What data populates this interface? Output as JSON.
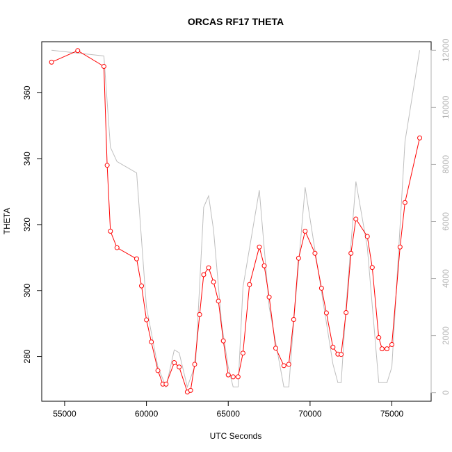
{
  "chart_data": {
    "type": "line",
    "title": "ORCAS RF17 THETA",
    "xlabel": "UTC Seconds",
    "ylabel": "THETA",
    "xlim": [
      53600,
      77400
    ],
    "ylim": [
      266.4,
      375.5
    ],
    "y2lim": [
      -300,
      12300
    ],
    "x_ticks": [
      55000,
      60000,
      65000,
      70000,
      75000
    ],
    "y_ticks": [
      280,
      300,
      320,
      340,
      360
    ],
    "y2_ticks": [
      0,
      2000,
      4000,
      6000,
      8000,
      10000,
      12000
    ],
    "grid": false,
    "series": [
      {
        "axis": "left",
        "color": "#ff0000",
        "marker": "open-circle",
        "x": [
          54200,
          55800,
          57400,
          57600,
          57800,
          58200,
          59400,
          59700,
          60000,
          60300,
          60700,
          61000,
          61200,
          61700,
          62000,
          62500,
          62700,
          62950,
          63250,
          63500,
          63800,
          64100,
          64400,
          64700,
          65000,
          65300,
          65600,
          65900,
          66300,
          66900,
          67200,
          67500,
          67900,
          68400,
          68700,
          69000,
          69300,
          69700,
          70300,
          70700,
          71000,
          71400,
          71700,
          71900,
          72200,
          72500,
          72800,
          73500,
          73800,
          74200,
          74400,
          74700,
          75000,
          75500,
          75800,
          76700
        ],
        "y": [
          369.3,
          372.8,
          368.0,
          338.0,
          318.0,
          313.0,
          309.6,
          301.4,
          291.1,
          284.4,
          275.7,
          271.6,
          271.6,
          278.1,
          276.8,
          269.2,
          269.7,
          277.6,
          292.7,
          304.8,
          306.9,
          302.6,
          296.8,
          284.7,
          274.4,
          273.8,
          273.8,
          281.0,
          301.8,
          313.2,
          307.5,
          298.0,
          282.5,
          277.2,
          277.6,
          291.2,
          309.8,
          318.0,
          311.3,
          300.7,
          293.2,
          282.8,
          280.7,
          280.6,
          293.3,
          311.3,
          321.7,
          316.4,
          307.0,
          285.7,
          282.3,
          282.3,
          283.6,
          313.2,
          326.7,
          346.3
        ]
      },
      {
        "axis": "right",
        "color": "#bebebe",
        "marker": "none",
        "x": [
          54200,
          55800,
          57400,
          57800,
          58200,
          59400,
          60000,
          60700,
          61200,
          61700,
          62000,
          62500,
          63000,
          63500,
          63800,
          64100,
          64600,
          65000,
          65300,
          65600,
          65900,
          66900,
          67500,
          68400,
          68700,
          69000,
          69700,
          70300,
          71400,
          71700,
          71900,
          72200,
          72800,
          73500,
          74200,
          74400,
          74700,
          75000,
          75800,
          76700
        ],
        "y": [
          12000,
          11900,
          11800,
          8600,
          8100,
          7700,
          3000,
          900,
          200,
          1500,
          1400,
          200,
          1000,
          6500,
          6900,
          5700,
          2400,
          900,
          200,
          200,
          3700,
          7100,
          3000,
          200,
          200,
          2500,
          7200,
          5000,
          1000,
          350,
          350,
          3000,
          7400,
          5100,
          350,
          350,
          350,
          900,
          8800,
          12000
        ]
      }
    ]
  }
}
